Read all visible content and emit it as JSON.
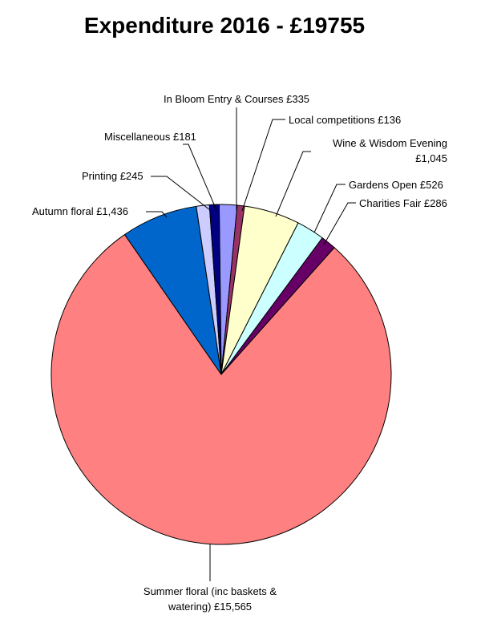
{
  "chart_data": {
    "type": "pie",
    "title": "Expenditure 2016 - £19755",
    "slices": [
      {
        "label": "In Bloom Entry & Courses £335",
        "value": 335,
        "color": "#9999FF"
      },
      {
        "label": "Local competitions £136",
        "value": 136,
        "color": "#993366"
      },
      {
        "label": "Wine & Wisdom Evening £1,045",
        "value": 1045,
        "color": "#FFFFCC"
      },
      {
        "label": "Gardens Open £526",
        "value": 526,
        "color": "#CCFFFF"
      },
      {
        "label": "Charities Fair £286",
        "value": 286,
        "color": "#660066"
      },
      {
        "label": "Summer floral (inc baskets & watering) £15,565",
        "value": 15565,
        "color": "#FF8080"
      },
      {
        "label": "Autumn floral £1,436",
        "value": 1436,
        "color": "#0066CC"
      },
      {
        "label": "Printing £245",
        "value": 245,
        "color": "#CCCCFF"
      },
      {
        "label": "Miscellaneous £181",
        "value": 181,
        "color": "#000080"
      }
    ],
    "legend": "none",
    "data_labels": "outside-with-leaders"
  }
}
